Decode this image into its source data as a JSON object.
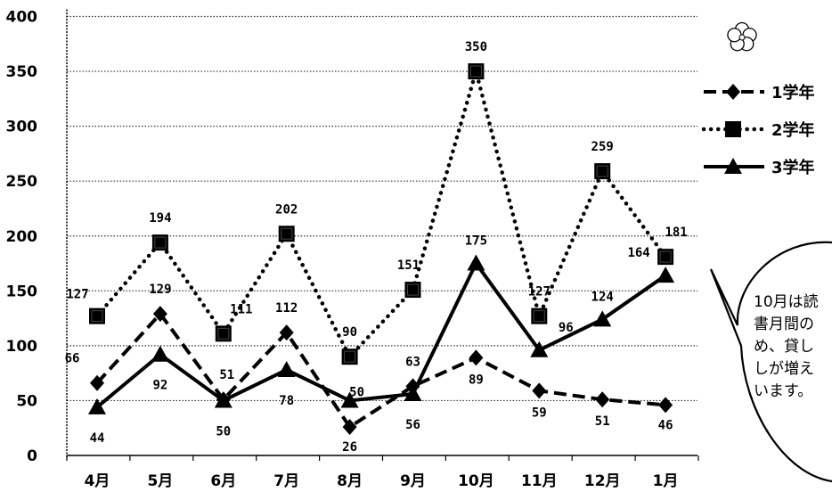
{
  "chart_data": {
    "type": "line",
    "title": "",
    "xlabel": "",
    "ylabel": "",
    "categories": [
      "4月",
      "5月",
      "6月",
      "7月",
      "8月",
      "9月",
      "10月",
      "11月",
      "12月",
      "1月"
    ],
    "ylim": [
      0,
      400
    ],
    "yticks": [
      0,
      50,
      100,
      150,
      200,
      250,
      300,
      350,
      400
    ],
    "grid": true,
    "legend_position": "right",
    "series": [
      {
        "name": "1学年",
        "values": [
          66,
          129,
          51,
          112,
          26,
          63,
          89,
          59,
          51,
          46
        ],
        "marker": "diamond",
        "line_style": "dashed",
        "color": "#000000"
      },
      {
        "name": "2学年",
        "values": [
          127,
          194,
          111,
          202,
          90,
          151,
          350,
          127,
          259,
          181
        ],
        "marker": "square",
        "line_style": "dotted",
        "color": "#000000"
      },
      {
        "name": "3学年",
        "values": [
          44,
          92,
          50,
          78,
          50,
          56,
          175,
          96,
          124,
          164
        ],
        "marker": "triangle",
        "line_style": "solid",
        "color": "#000000"
      }
    ],
    "annotation": {
      "lines": [
        "10月は読",
        "書月間の",
        "め、貸し",
        "しが増え",
        "います。"
      ]
    },
    "decoration_icon": "plum-blossom-icon"
  }
}
